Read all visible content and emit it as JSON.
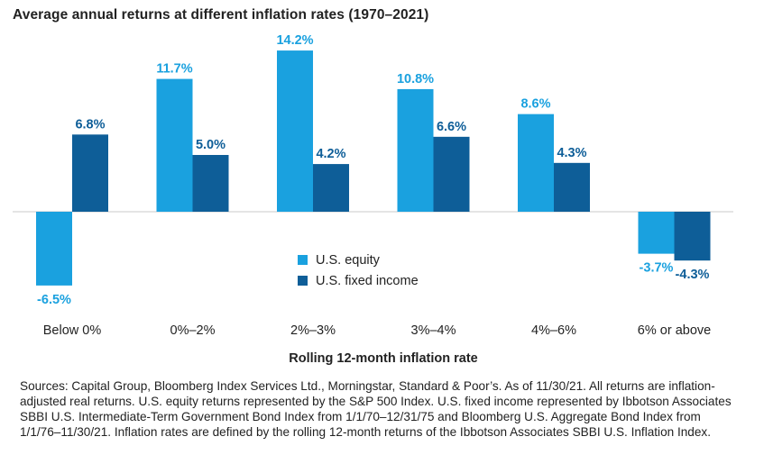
{
  "title": "Average annual returns at different inflation rates (1970–2021)",
  "chart_data": {
    "type": "bar",
    "xlabel": "Rolling 12-month inflation rate",
    "ylabel": "",
    "ylim": [
      -10,
      17
    ],
    "grid": false,
    "legend_position": "center",
    "categories": [
      "Below 0%",
      "0%–2%",
      "2%–3%",
      "3%–4%",
      "4%–6%",
      "6% or above"
    ],
    "series": [
      {
        "name": "U.S. equity",
        "color": "#1aa1df",
        "values": [
          -6.5,
          11.7,
          14.2,
          10.8,
          8.6,
          -3.7
        ],
        "labels": [
          "-6.5%",
          "11.7%",
          "14.2%",
          "10.8%",
          "8.6%",
          "-3.7%"
        ]
      },
      {
        "name": "U.S. fixed income",
        "color": "#0e5e98",
        "values": [
          6.8,
          5.0,
          4.2,
          6.6,
          4.3,
          -4.3
        ],
        "labels": [
          "6.8%",
          "5.0%",
          "4.2%",
          "6.6%",
          "4.3%",
          "-4.3%"
        ]
      }
    ]
  },
  "footnote": "Sources: Capital Group, Bloomberg Index Services Ltd., Morningstar, Standard & Poor’s. As of 11/30/21. All returns are inflation-adjusted real returns. U.S. equity returns represented by the S&P 500 Index. U.S. fixed income represented by Ibbotson Associates SBBI U.S. Intermediate-Term Government Bond Index from 1/1/70–12/31/75 and Bloomberg U.S. Aggregate Bond Index from 1/1/76–11/30/21. Inflation rates are defined by the rolling 12-month returns of the Ibbotson Associates SBBI U.S. Inflation Index."
}
